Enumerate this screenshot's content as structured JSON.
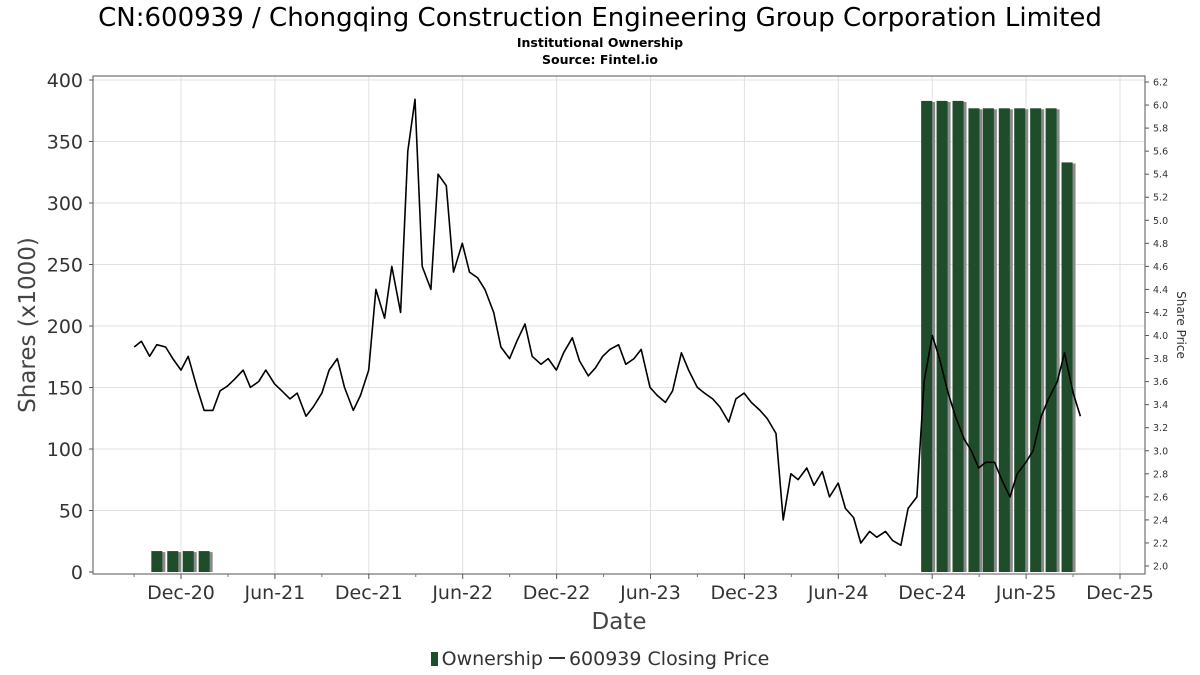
{
  "title": "CN:600939 / Chongqing Construction Engineering Group Corporation Limited",
  "subtitle1": "Institutional Ownership",
  "subtitle2": "Source: Fintel.io",
  "legend": {
    "ownership": "Ownership",
    "price": "600939 Closing Price"
  },
  "colors": {
    "bar": "#1f4d2b",
    "bar_shadow": "#8a8a8a",
    "line": "#000000",
    "grid": "#e0e0e0"
  },
  "chart_data": {
    "type": "bar",
    "xlabel": "Date",
    "ylabel": "Shares (x1000)",
    "y2label": "Share Price",
    "ylim": [
      0,
      400
    ],
    "y2lim": [
      2.0,
      6.2
    ],
    "x_ticks": [
      "Dec-20",
      "Jun-21",
      "Dec-21",
      "Jun-22",
      "Dec-22",
      "Jun-23",
      "Dec-23",
      "Jun-24",
      "Dec-24",
      "Jun-25",
      "Dec-25"
    ],
    "y_ticks": [
      0,
      50,
      100,
      150,
      200,
      250,
      300,
      350,
      400
    ],
    "y2_ticks": [
      "2.0",
      "2.2",
      "2.4",
      "2.6",
      "2.8",
      "3.0",
      "3.2",
      "3.4",
      "3.6",
      "3.8",
      "4.0",
      "4.2",
      "4.4",
      "4.6",
      "4.8",
      "5.0",
      "5.2",
      "5.4",
      "5.6",
      "5.8",
      "6.0",
      "6.2"
    ],
    "grid": true,
    "legend_position": "bottom",
    "series": [
      {
        "name": "Ownership",
        "type": "bar",
        "x": [
          "2020-10-15",
          "2020-11-15",
          "2020-12-15",
          "2021-01-15",
          "2024-11-20",
          "2024-12-20",
          "2025-01-20",
          "2025-02-20",
          "2025-03-20",
          "2025-04-20",
          "2025-05-20",
          "2025-06-20",
          "2025-07-20",
          "2025-08-20"
        ],
        "values": [
          17,
          17,
          17,
          17,
          383,
          383,
          383,
          377,
          377,
          377,
          377,
          377,
          377,
          333
        ]
      },
      {
        "name": "600939 Closing Price",
        "type": "line",
        "x": [
          "2020-09-01",
          "2020-09-15",
          "2020-10-01",
          "2020-10-15",
          "2020-11-01",
          "2020-11-15",
          "2020-12-01",
          "2020-12-15",
          "2021-01-01",
          "2021-01-15",
          "2021-02-01",
          "2021-02-15",
          "2021-03-01",
          "2021-03-15",
          "2021-04-01",
          "2021-04-15",
          "2021-05-01",
          "2021-05-15",
          "2021-06-01",
          "2021-06-15",
          "2021-07-01",
          "2021-07-15",
          "2021-08-01",
          "2021-08-15",
          "2021-09-01",
          "2021-09-15",
          "2021-10-01",
          "2021-10-15",
          "2021-11-01",
          "2021-11-15",
          "2021-12-01",
          "2021-12-15",
          "2022-01-01",
          "2022-01-15",
          "2022-02-01",
          "2022-02-15",
          "2022-03-01",
          "2022-03-15",
          "2022-04-01",
          "2022-04-15",
          "2022-05-01",
          "2022-05-15",
          "2022-06-01",
          "2022-06-15",
          "2022-07-01",
          "2022-07-15",
          "2022-08-01",
          "2022-08-15",
          "2022-09-01",
          "2022-09-15",
          "2022-10-01",
          "2022-10-15",
          "2022-11-01",
          "2022-11-15",
          "2022-12-01",
          "2022-12-15",
          "2023-01-01",
          "2023-01-15",
          "2023-02-01",
          "2023-02-15",
          "2023-03-01",
          "2023-03-15",
          "2023-04-01",
          "2023-04-15",
          "2023-05-01",
          "2023-05-15",
          "2023-06-01",
          "2023-06-15",
          "2023-07-01",
          "2023-07-15",
          "2023-08-01",
          "2023-08-15",
          "2023-09-01",
          "2023-09-15",
          "2023-10-01",
          "2023-10-15",
          "2023-11-01",
          "2023-11-15",
          "2023-12-01",
          "2023-12-15",
          "2024-01-01",
          "2024-01-15",
          "2024-02-01",
          "2024-02-15",
          "2024-03-01",
          "2024-03-15",
          "2024-04-01",
          "2024-04-15",
          "2024-05-01",
          "2024-05-15",
          "2024-06-01",
          "2024-06-15",
          "2024-07-01",
          "2024-07-15",
          "2024-08-01",
          "2024-08-15",
          "2024-09-01",
          "2024-09-15",
          "2024-10-01",
          "2024-10-15",
          "2024-11-01",
          "2024-11-15",
          "2024-12-01",
          "2024-12-15",
          "2025-01-01",
          "2025-01-15",
          "2025-02-01",
          "2025-02-15",
          "2025-03-01",
          "2025-03-15",
          "2025-04-01",
          "2025-04-15",
          "2025-05-01",
          "2025-05-15",
          "2025-06-01",
          "2025-06-15",
          "2025-07-01",
          "2025-07-15",
          "2025-08-01",
          "2025-08-15",
          "2025-09-01",
          "2025-09-15"
        ],
        "values": [
          3.9,
          3.95,
          3.82,
          3.92,
          3.9,
          3.8,
          3.7,
          3.82,
          3.55,
          3.35,
          3.35,
          3.52,
          3.56,
          3.62,
          3.7,
          3.55,
          3.6,
          3.7,
          3.58,
          3.52,
          3.45,
          3.5,
          3.3,
          3.38,
          3.5,
          3.7,
          3.8,
          3.55,
          3.35,
          3.48,
          3.7,
          4.4,
          4.15,
          4.6,
          4.2,
          5.6,
          6.05,
          4.6,
          4.4,
          5.4,
          5.3,
          4.55,
          4.8,
          4.55,
          4.5,
          4.4,
          4.2,
          3.9,
          3.8,
          3.95,
          4.1,
          3.82,
          3.75,
          3.8,
          3.7,
          3.85,
          3.98,
          3.78,
          3.65,
          3.72,
          3.82,
          3.88,
          3.92,
          3.75,
          3.8,
          3.88,
          3.55,
          3.48,
          3.42,
          3.52,
          3.85,
          3.7,
          3.55,
          3.5,
          3.45,
          3.38,
          3.25,
          3.45,
          3.5,
          3.42,
          3.35,
          3.28,
          3.15,
          2.4,
          2.8,
          2.75,
          2.85,
          2.7,
          2.82,
          2.6,
          2.72,
          2.5,
          2.42,
          2.2,
          2.3,
          2.25,
          2.3,
          2.22,
          2.18,
          2.5,
          2.6,
          3.6,
          4.0,
          3.8,
          3.5,
          3.3,
          3.1,
          3.0,
          2.85,
          2.9,
          2.9,
          2.75,
          2.6,
          2.8,
          2.9,
          3.0,
          3.3,
          3.45,
          3.6,
          3.85,
          3.5,
          3.3
        ]
      }
    ]
  }
}
